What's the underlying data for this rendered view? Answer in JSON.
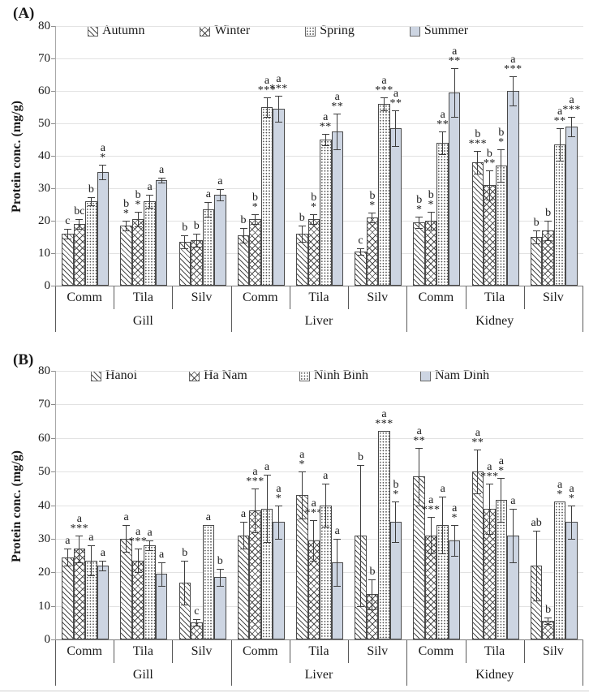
{
  "colors": {
    "solid_bar": "#cdd5e2",
    "bar_border": "#4a4a4a",
    "gridline": "#e2e2e2",
    "axis": "#8a8a8a",
    "text": "#1a1a1a"
  },
  "chart_data": [
    {
      "type": "bar",
      "panel_label": "(A)",
      "ylabel": "Protein conc. (mg/g)",
      "ylim": [
        0,
        80
      ],
      "ytick_step": 10,
      "yticks": [
        0,
        10,
        20,
        30,
        40,
        50,
        60,
        70,
        80
      ],
      "grid": true,
      "legend_position": "top-inside",
      "group_labels": [
        "Gill",
        "Liver",
        "Kidney"
      ],
      "subgroup_labels": [
        "Comm",
        "Tila",
        "Silv"
      ],
      "categories": [
        "Gill-Comm",
        "Gill-Tila",
        "Gill-Silv",
        "Liver-Comm",
        "Liver-Tila",
        "Liver-Silv",
        "Kidney-Comm",
        "Kidney-Tila",
        "Kidney-Silv"
      ],
      "series": [
        {
          "name": "Autumn",
          "pattern": "diagonal-hatch",
          "values": [
            16,
            18.5,
            13.5,
            15.5,
            16,
            10.5,
            19.5,
            38,
            15
          ],
          "errors": [
            1.5,
            1.5,
            2,
            2.2,
            2.5,
            1,
            1.7,
            3.5,
            2
          ],
          "sig_labels": [
            "c",
            "b*",
            "b",
            "b",
            "b",
            "c",
            "b*",
            "b***",
            "b"
          ]
        },
        {
          "name": "Winter",
          "pattern": "cross-hatch",
          "values": [
            19,
            20.5,
            14,
            20.5,
            20.5,
            21,
            20,
            31,
            17
          ],
          "errors": [
            1.5,
            2.2,
            2,
            1.5,
            1.5,
            1.5,
            2.7,
            4.5,
            3
          ],
          "sig_labels": [
            "bc",
            "b*",
            "b",
            "b*",
            "b*",
            "b*",
            "b*",
            "b**",
            "b"
          ]
        },
        {
          "name": "Spring",
          "pattern": "dots",
          "values": [
            26,
            26,
            23.5,
            55,
            45,
            56,
            44,
            37,
            43.5
          ],
          "errors": [
            1.2,
            2,
            2.2,
            3,
            1.7,
            2,
            3.5,
            5,
            5
          ],
          "sig_labels": [
            "b",
            "a",
            "a",
            "a***",
            "a**",
            "a***",
            "a**",
            "b*",
            "a**"
          ]
        },
        {
          "name": "Summer",
          "pattern": "solid",
          "color": "#cdd5e2",
          "values": [
            35,
            32.5,
            28,
            54.5,
            47.5,
            48.5,
            59.5,
            60,
            49
          ],
          "errors": [
            2.2,
            0.8,
            1.8,
            4,
            5.5,
            5.5,
            7.5,
            4.5,
            3
          ],
          "sig_labels": [
            "a*",
            "a",
            "a",
            "a***",
            "a**",
            "a**",
            "a**",
            "a***",
            "a***"
          ]
        }
      ]
    },
    {
      "type": "bar",
      "panel_label": "(B)",
      "ylabel": "Protein conc. (mg/g)",
      "ylim": [
        0,
        80
      ],
      "ytick_step": 10,
      "yticks": [
        0,
        10,
        20,
        30,
        40,
        50,
        60,
        70,
        80
      ],
      "grid": true,
      "legend_position": "top-inside",
      "group_labels": [
        "Gill",
        "Liver",
        "Kidney"
      ],
      "subgroup_labels": [
        "Comm",
        "Tila",
        "Silv"
      ],
      "categories": [
        "Gill-Comm",
        "Gill-Tila",
        "Gill-Silv",
        "Liver-Comm",
        "Liver-Tila",
        "Liver-Silv",
        "Kidney-Comm",
        "Kidney-Tila",
        "Kidney-Silv"
      ],
      "series": [
        {
          "name": "Hanoi",
          "pattern": "diagonal-hatch",
          "values": [
            24.5,
            30,
            17,
            31,
            43,
            31,
            48.5,
            50,
            22
          ],
          "errors": [
            2.5,
            4,
            6.5,
            4,
            7,
            21,
            8.5,
            6.5,
            10.5
          ],
          "sig_labels": [
            "a",
            "a",
            "b",
            "a",
            "a*",
            "b",
            "a**",
            "a**",
            "ab"
          ]
        },
        {
          "name": "Ha Nam",
          "pattern": "cross-hatch",
          "values": [
            27,
            23.5,
            5,
            38.5,
            29.5,
            13.5,
            31,
            39,
            5.5
          ],
          "errors": [
            4,
            3.5,
            1,
            6.5,
            6,
            4.5,
            5.5,
            7.5,
            1
          ],
          "sig_labels": [
            "a***",
            "a***",
            "c",
            "a***",
            "a***",
            "b",
            "a***",
            "a***",
            "b"
          ]
        },
        {
          "name": "Ninh Binh",
          "pattern": "dots",
          "values": [
            23.5,
            28,
            34,
            39,
            40,
            62,
            34,
            41.5,
            41
          ],
          "errors": [
            4.5,
            1.5,
            0,
            10,
            6.5,
            0,
            8.5,
            6.5,
            0
          ],
          "sig_labels": [
            "a",
            "a",
            "a",
            "a",
            "a",
            "a***",
            "a",
            "a*",
            "a*"
          ]
        },
        {
          "name": "Nam Dinh",
          "pattern": "solid",
          "color": "#cdd5e2",
          "values": [
            22,
            19.5,
            18.5,
            35,
            23,
            35,
            29.5,
            31,
            35
          ],
          "errors": [
            1.5,
            3.5,
            2.5,
            5,
            7,
            6,
            4.5,
            8,
            5
          ],
          "sig_labels": [
            "a",
            "a",
            "b",
            "a*",
            "a",
            "b*",
            "a*",
            "a",
            "a*"
          ]
        }
      ]
    }
  ]
}
